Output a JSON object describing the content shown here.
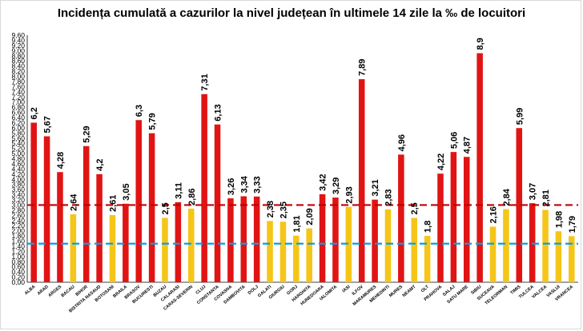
{
  "chart_data": {
    "type": "bar",
    "title": "Incidența cumulată a cazurilor la nivel județean în ultimele 14 zile la ‰ de locuitori",
    "xlabel": "",
    "ylabel": "",
    "ylim": [
      0,
      9.6
    ],
    "ytick_step": 0.1,
    "ytick_labels": [
      "0,00",
      "0,10",
      "0,20",
      "0,30",
      "0,40",
      "0,50",
      "0,60",
      "0,70",
      "0,80",
      "0,90",
      "1,00",
      "1,10",
      "1,20",
      "1,30",
      "1,40",
      "1,50",
      "1,60",
      "1,70",
      "1,80",
      "1,90",
      "2,00",
      "2,10",
      "2,20",
      "2,30",
      "2,40",
      "2,50",
      "2,60",
      "2,70",
      "2,80",
      "2,90",
      "3,00",
      "3,10",
      "3,20",
      "3,30",
      "3,40",
      "3,50",
      "3,60",
      "3,70",
      "3,80",
      "3,90",
      "4,00",
      "4,10",
      "4,20",
      "4,30",
      "4,40",
      "4,50",
      "4,60",
      "4,70",
      "4,80",
      "4,90",
      "5,00",
      "5,10",
      "5,20",
      "5,30",
      "5,40",
      "5,50",
      "5,60",
      "5,70",
      "5,80",
      "5,90",
      "6,00",
      "6,10",
      "6,20",
      "6,30",
      "6,40",
      "6,50",
      "6,60",
      "6,70",
      "6,80",
      "6,90",
      "7,00",
      "7,10",
      "7,20",
      "7,30",
      "7,40",
      "7,50",
      "7,60",
      "7,70",
      "7,80",
      "7,90",
      "8,00",
      "8,10",
      "8,20",
      "8,30",
      "8,40",
      "8,50",
      "8,60",
      "8,70",
      "8,80",
      "8,90",
      "9,00",
      "9,10",
      "9,20",
      "9,30",
      "9,40",
      "9,50",
      "9,60"
    ],
    "categories": [
      "ALBA",
      "ARAD",
      "ARGES",
      "BACAU",
      "BIHOR",
      "BISTRITA NASAUD",
      "BOTOSANI",
      "BRAILA",
      "BRASOV",
      "BUCURESTI",
      "BUZAU",
      "CALARASI",
      "CARAS-SEVERIN",
      "CLUJ",
      "CONSTANTA",
      "COVASNA",
      "DAMBOVITA",
      "DOLJ",
      "GALATI",
      "GIURGIU",
      "GORJ",
      "HARGHITA",
      "HUNEDOARA",
      "IALOMITA",
      "IASI",
      "ILFOV",
      "MARAMURES",
      "MEHEDINTI",
      "MURES",
      "NEAMT",
      "OLT",
      "PRAHOVA",
      "SALAJ",
      "SATU MARE",
      "SIBIU",
      "SUCEAVA",
      "TELEORMAN",
      "TIMIS",
      "TULCEA",
      "VALCEA",
      "VASLUI",
      "VRANCEA"
    ],
    "values": [
      6.2,
      5.67,
      4.28,
      2.64,
      5.29,
      4.2,
      2.61,
      3.05,
      6.3,
      5.79,
      2.5,
      3.11,
      2.86,
      7.31,
      6.13,
      3.26,
      3.34,
      3.33,
      2.38,
      2.35,
      1.81,
      2.09,
      3.42,
      3.29,
      2.93,
      7.89,
      3.21,
      2.83,
      4.96,
      2.5,
      1.8,
      4.22,
      5.06,
      4.87,
      8.9,
      2.16,
      2.84,
      5.99,
      3.07,
      2.81,
      1.98,
      1.79
    ],
    "value_labels": [
      "6,2",
      "5,67",
      "4,28",
      "2,64",
      "5,29",
      "4,2",
      "2,61",
      "3,05",
      "6,3",
      "5,79",
      "2,5",
      "3,11",
      "2,86",
      "7,31",
      "6,13",
      "3,26",
      "3,34",
      "3,33",
      "2,38",
      "2,35",
      "1,81",
      "2,09",
      "3,42",
      "3,29",
      "2,93",
      "7,89",
      "3,21",
      "2,83",
      "4,96",
      "2,5",
      "1,8",
      "4,22",
      "5,06",
      "4,87",
      "8,9",
      "2,16",
      "2,84",
      "5,99",
      "3,07",
      "2,81",
      "1,98",
      "1,79"
    ],
    "thresholds": [
      {
        "value": 3.0,
        "color": "#c00000",
        "style": "dashed"
      },
      {
        "value": 1.5,
        "color": "#00a0f0",
        "style": "dashed"
      }
    ],
    "colors": {
      "above": "#e11414",
      "below": "#f5c518"
    },
    "grid": false,
    "legend": "none"
  }
}
